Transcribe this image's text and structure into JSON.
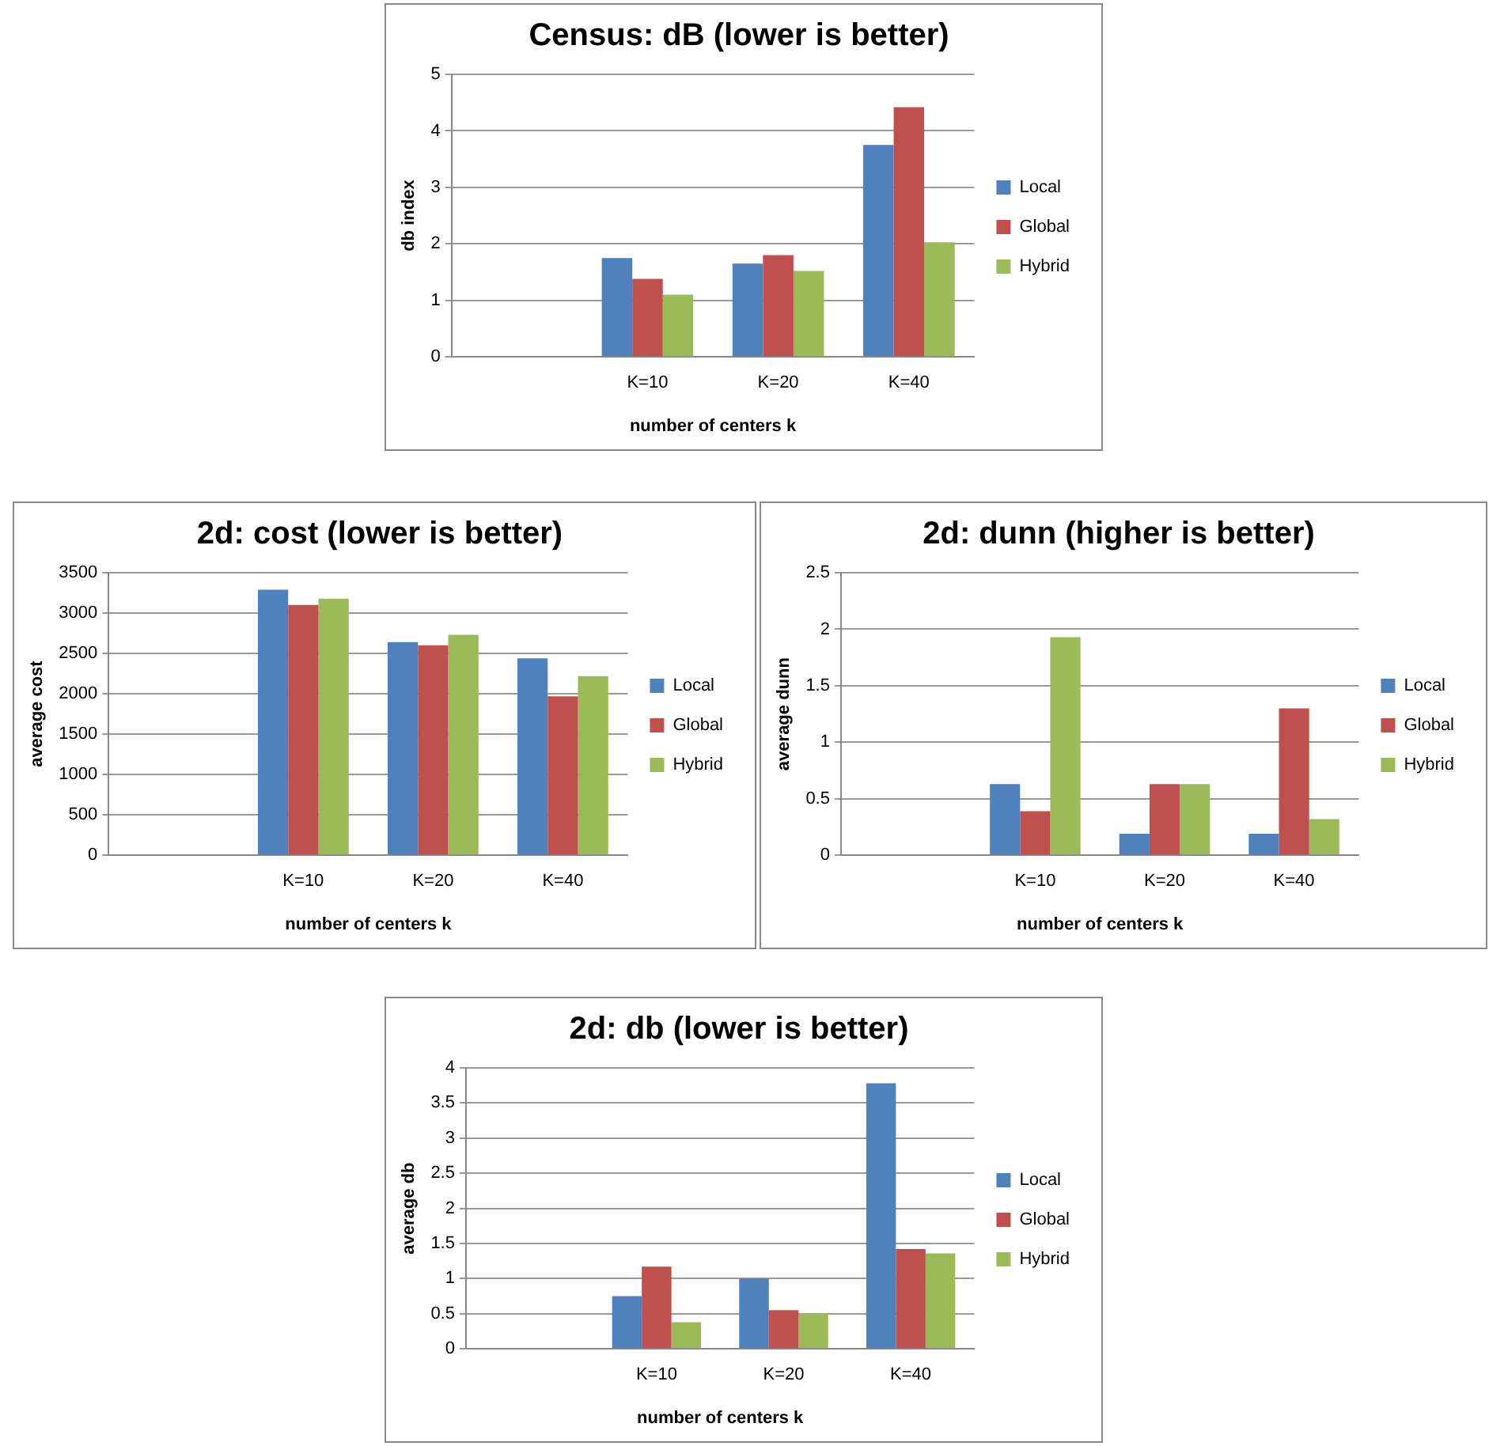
{
  "chart_data": [
    {
      "type": "bar",
      "title": "Census: dB (lower is better)",
      "xlabel": "number of centers k",
      "ylabel": "db index",
      "categories": [
        null,
        "K=10",
        "K=20",
        "K=40"
      ],
      "ylim": [
        0,
        5
      ],
      "yticks": [
        0,
        1,
        2,
        3,
        4,
        5
      ],
      "grid": "y",
      "legend": "right",
      "series": [
        {
          "name": "Local",
          "color": "#4f81bd",
          "values": [
            null,
            1.75,
            1.65,
            3.75
          ]
        },
        {
          "name": "Global",
          "color": "#c0504d",
          "values": [
            null,
            1.38,
            1.8,
            4.42
          ]
        },
        {
          "name": "Hybrid",
          "color": "#9bbb59",
          "values": [
            null,
            1.1,
            1.52,
            2.03
          ]
        }
      ]
    },
    {
      "type": "bar",
      "title": "2d: cost (lower is better)",
      "xlabel": "number of centers k",
      "ylabel": "average cost",
      "categories": [
        null,
        "K=10",
        "K=20",
        "K=40"
      ],
      "ylim": [
        0,
        3500
      ],
      "yticks": [
        0,
        500,
        1000,
        1500,
        2000,
        2500,
        3000,
        3500
      ],
      "grid": "y",
      "legend": "right",
      "series": [
        {
          "name": "Local",
          "color": "#4f81bd",
          "values": [
            null,
            3290,
            2640,
            2440
          ]
        },
        {
          "name": "Global",
          "color": "#c0504d",
          "values": [
            null,
            3100,
            2600,
            1970
          ]
        },
        {
          "name": "Hybrid",
          "color": "#9bbb59",
          "values": [
            null,
            3180,
            2730,
            2220
          ]
        }
      ]
    },
    {
      "type": "bar",
      "title": "2d: dunn (higher is better)",
      "xlabel": "number of centers k",
      "ylabel": "average dunn",
      "categories": [
        null,
        "K=10",
        "K=20",
        "K=40"
      ],
      "ylim": [
        0,
        2.5
      ],
      "yticks": [
        0,
        0.5,
        1,
        1.5,
        2,
        2.5
      ],
      "grid": "y",
      "legend": "right",
      "series": [
        {
          "name": "Local",
          "color": "#4f81bd",
          "values": [
            null,
            0.63,
            0.19,
            0.19
          ]
        },
        {
          "name": "Global",
          "color": "#c0504d",
          "values": [
            null,
            0.39,
            0.63,
            1.3
          ]
        },
        {
          "name": "Hybrid",
          "color": "#9bbb59",
          "values": [
            null,
            1.93,
            0.63,
            0.32
          ]
        }
      ]
    },
    {
      "type": "bar",
      "title": "2d: db (lower is better)",
      "xlabel": "number of centers k",
      "ylabel": "average db",
      "categories": [
        null,
        "K=10",
        "K=20",
        "K=40"
      ],
      "ylim": [
        0,
        4
      ],
      "yticks": [
        0,
        0.5,
        1,
        1.5,
        2,
        2.5,
        3,
        3.5,
        4
      ],
      "grid": "y",
      "legend": "right",
      "series": [
        {
          "name": "Local",
          "color": "#4f81bd",
          "values": [
            null,
            0.75,
            1.0,
            3.78
          ]
        },
        {
          "name": "Global",
          "color": "#c0504d",
          "values": [
            null,
            1.17,
            0.55,
            1.42
          ]
        },
        {
          "name": "Hybrid",
          "color": "#9bbb59",
          "values": [
            null,
            0.38,
            0.5,
            1.36
          ]
        }
      ]
    }
  ]
}
